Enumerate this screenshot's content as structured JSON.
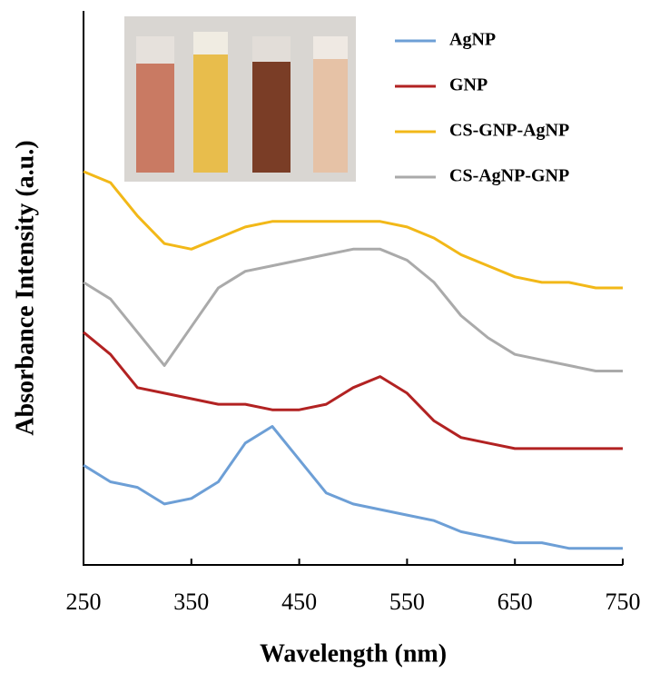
{
  "chart_data": {
    "type": "line",
    "xlabel": "Wavelength (nm)",
    "ylabel": "Absorbance Intensity (a.u.)",
    "x": [
      250,
      275,
      300,
      325,
      350,
      375,
      400,
      425,
      450,
      475,
      500,
      525,
      550,
      575,
      600,
      625,
      650,
      675,
      700,
      725,
      750
    ],
    "xlim": [
      250,
      750
    ],
    "xticks": [
      250,
      350,
      450,
      550,
      650,
      750
    ],
    "ylim": [
      0,
      1
    ],
    "series": [
      {
        "name": "AgNP",
        "color": "#6d9fd6",
        "values": [
          0.18,
          0.15,
          0.14,
          0.11,
          0.12,
          0.15,
          0.22,
          0.25,
          0.19,
          0.13,
          0.11,
          0.1,
          0.09,
          0.08,
          0.06,
          0.05,
          0.04,
          0.04,
          0.03,
          0.03,
          0.03
        ]
      },
      {
        "name": "GNP",
        "color": "#b22222",
        "values": [
          0.42,
          0.38,
          0.32,
          0.31,
          0.3,
          0.29,
          0.29,
          0.28,
          0.28,
          0.29,
          0.32,
          0.34,
          0.31,
          0.26,
          0.23,
          0.22,
          0.21,
          0.21,
          0.21,
          0.21,
          0.21
        ]
      },
      {
        "name": "CS-GNP-AgNP",
        "color": "#f2b818",
        "values": [
          0.71,
          0.69,
          0.63,
          0.58,
          0.57,
          0.59,
          0.61,
          0.62,
          0.62,
          0.62,
          0.62,
          0.62,
          0.61,
          0.59,
          0.56,
          0.54,
          0.52,
          0.51,
          0.51,
          0.5,
          0.5
        ]
      },
      {
        "name": "CS-AgNP-GNP",
        "color": "#aaaaaa",
        "values": [
          0.51,
          0.48,
          0.42,
          0.36,
          0.43,
          0.5,
          0.53,
          0.54,
          0.55,
          0.56,
          0.57,
          0.57,
          0.55,
          0.51,
          0.45,
          0.41,
          0.38,
          0.37,
          0.36,
          0.35,
          0.35
        ]
      }
    ]
  }
}
